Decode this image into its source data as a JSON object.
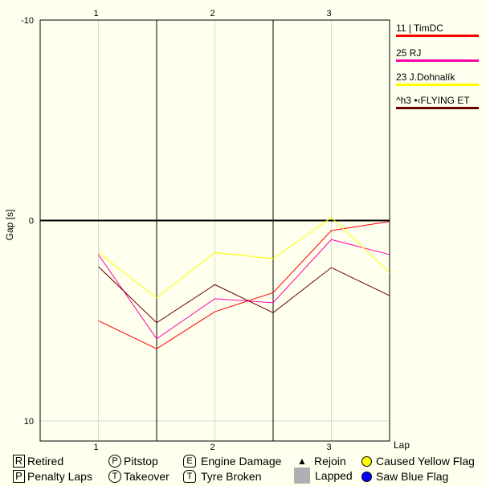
{
  "chart_data": {
    "type": "line",
    "xlabel": "Lap",
    "ylabel": "Gap [s]",
    "x": [
      1,
      1.5,
      2,
      2.5,
      3,
      3.5
    ],
    "xlim": [
      0.5,
      3.5
    ],
    "ylim": [
      -10,
      11
    ],
    "y_inverted": true,
    "x_ticks": [
      "1",
      "2",
      "3"
    ],
    "y_ticks": [
      "-10",
      "0",
      "10"
    ],
    "grid": true,
    "legend_placement": "right",
    "series": [
      {
        "name": "11 | TimDC",
        "color": "#ff0000",
        "values": [
          5.0,
          6.4,
          4.55,
          3.6,
          0.5,
          0.05
        ]
      },
      {
        "name": "25 RJ",
        "color": "#ff00aa",
        "values": [
          1.7,
          5.9,
          3.9,
          4.1,
          0.95,
          1.7
        ]
      },
      {
        "name": "23 J.Dohnalík",
        "color": "#ffff00",
        "values": [
          1.6,
          3.85,
          1.6,
          1.9,
          -0.15,
          2.6
        ]
      },
      {
        "name": "^h3 •‹FLYING ET",
        "color": "#660000",
        "values": [
          2.3,
          5.1,
          3.2,
          4.6,
          2.35,
          3.75
        ]
      }
    ]
  },
  "bottom_legend": [
    {
      "symbol": "R",
      "label": "Retired"
    },
    {
      "symbol": "P",
      "label": "Penalty Laps"
    },
    {
      "symbol": "P",
      "label": "Pitstop"
    },
    {
      "symbol": "T",
      "label": "Takeover"
    },
    {
      "symbol": "E",
      "label": "Engine Damage"
    },
    {
      "symbol": "T",
      "label": "Tyre Broken"
    },
    {
      "symbol": "▲",
      "label": "Rejoin"
    },
    {
      "symbol": "",
      "label": "Lapped",
      "color": "#b0b0b0"
    },
    {
      "symbol": "",
      "label": "Caused Yellow Flag",
      "color": "#ffff00"
    },
    {
      "symbol": "",
      "label": "Saw Blue Flag",
      "color": "#0000ff"
    }
  ]
}
